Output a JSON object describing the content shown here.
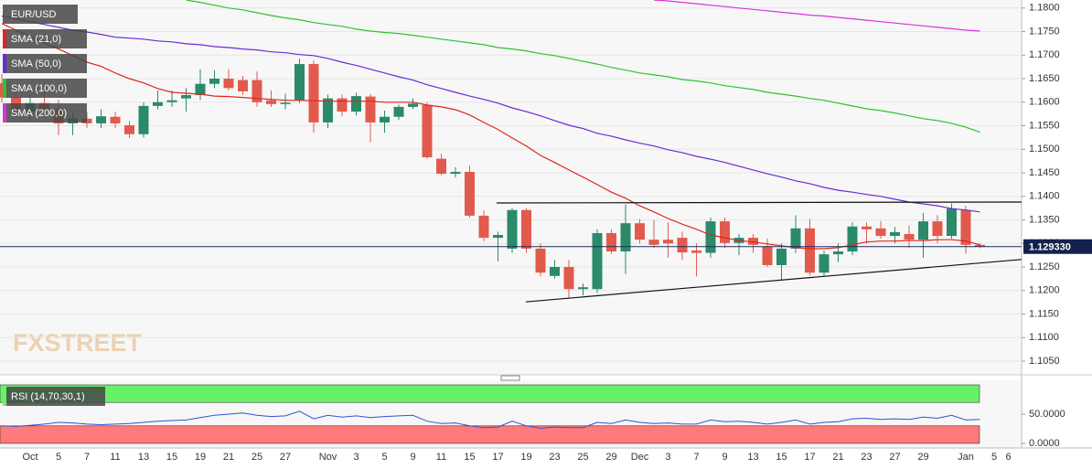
{
  "chart_data": {
    "type": "candlestick",
    "title": "EUR/USD",
    "watermark": "FXSTREET",
    "categories": [
      null,
      null,
      "Oct",
      null,
      "5",
      null,
      "7",
      null,
      "11",
      null,
      "13",
      null,
      "15",
      null,
      "19",
      null,
      "21",
      null,
      "25",
      null,
      "27",
      null,
      null,
      "Nov",
      null,
      "3",
      null,
      "5",
      null,
      "9",
      null,
      "11",
      null,
      "15",
      null,
      "17",
      null,
      "19",
      null,
      "23",
      null,
      "25",
      null,
      "29",
      null,
      "Dec",
      null,
      "3",
      null,
      "7",
      null,
      "9",
      null,
      "13",
      null,
      "15",
      null,
      "17",
      null,
      "21",
      null,
      "23",
      null,
      "27",
      null,
      "29",
      null,
      null,
      "Jan",
      null,
      "5",
      "6"
    ],
    "open": [
      1.164,
      1.161,
      1.158,
      1.1598,
      1.1585,
      1.1555,
      1.1565,
      1.1555,
      1.1569,
      1.1551,
      1.1532,
      1.1592,
      1.16,
      1.1608,
      1.1615,
      1.1639,
      1.165,
      1.1647,
      1.1647,
      1.1604,
      1.1596,
      1.1604,
      1.1681,
      1.1557,
      1.1608,
      1.158,
      1.1612,
      1.1557,
      1.1569,
      1.159,
      1.1594,
      1.148,
      1.1448,
      1.1452,
      1.1359,
      1.1312,
      1.1289,
      1.1371,
      1.1289,
      1.1231,
      1.125,
      1.1203,
      1.1203,
      1.1322,
      1.1283,
      1.1343,
      1.1308,
      1.1308,
      1.1312,
      1.1285,
      1.128,
      1.1347,
      1.1301,
      1.1312,
      1.1293,
      1.1254,
      1.1289,
      1.1332,
      1.1238,
      1.1277,
      1.1283,
      1.1336,
      1.1332,
      1.1316,
      1.132,
      1.1308,
      1.1347,
      1.1316,
      1.1371,
      1.1297,
      null,
      null
    ],
    "high": [
      1.166,
      1.164,
      1.1615,
      1.1625,
      1.1605,
      1.158,
      1.158,
      1.1585,
      1.158,
      1.156,
      1.16,
      1.1625,
      1.1625,
      1.163,
      1.167,
      1.1668,
      1.167,
      1.1656,
      1.1665,
      1.1625,
      1.1618,
      1.1692,
      1.1688,
      1.1616,
      1.1616,
      1.162,
      1.1617,
      1.1582,
      1.1595,
      1.1608,
      1.16,
      1.149,
      1.1462,
      1.1465,
      1.137,
      1.1325,
      1.1375,
      1.1375,
      1.13,
      1.1265,
      1.1265,
      1.1215,
      1.133,
      1.133,
      1.1383,
      1.1352,
      1.135,
      1.1345,
      1.1325,
      1.13,
      1.1355,
      1.1355,
      1.132,
      1.132,
      1.131,
      1.13,
      1.136,
      1.1352,
      1.1285,
      1.13,
      1.1345,
      1.1345,
      1.1348,
      1.1335,
      1.1338,
      1.1365,
      1.136,
      1.1385,
      1.138,
      1.13,
      null,
      null
    ],
    "low": [
      1.16,
      1.1565,
      1.1562,
      1.157,
      1.153,
      1.153,
      1.1545,
      1.1545,
      1.1545,
      1.1524,
      1.1525,
      1.1585,
      1.159,
      1.158,
      1.1605,
      1.163,
      1.1625,
      1.1615,
      1.159,
      1.159,
      1.1585,
      1.1598,
      1.1535,
      1.1545,
      1.157,
      1.1572,
      1.1515,
      1.1535,
      1.1562,
      1.1585,
      1.148,
      1.1445,
      1.144,
      1.1355,
      1.1305,
      1.1262,
      1.128,
      1.128,
      1.123,
      1.1225,
      1.1185,
      1.119,
      1.1195,
      1.1278,
      1.1235,
      1.13,
      1.129,
      1.127,
      1.1265,
      1.123,
      1.127,
      1.129,
      1.1275,
      1.128,
      1.125,
      1.1222,
      1.128,
      1.1232,
      1.123,
      1.126,
      1.1275,
      1.13,
      1.131,
      1.13,
      1.129,
      1.127,
      1.13,
      1.131,
      1.1278,
      1.129,
      null,
      null
    ],
    "close": [
      1.161,
      1.158,
      1.1598,
      1.1585,
      1.1555,
      1.1565,
      1.1555,
      1.157,
      1.1555,
      1.1532,
      1.1592,
      1.16,
      1.1604,
      1.1615,
      1.1639,
      1.165,
      1.163,
      1.1623,
      1.16,
      1.1596,
      1.1599,
      1.1681,
      1.1557,
      1.1608,
      1.158,
      1.1613,
      1.1557,
      1.1569,
      1.159,
      1.1597,
      1.1483,
      1.1448,
      1.1452,
      1.1359,
      1.1312,
      1.1318,
      1.1371,
      1.1289,
      1.1238,
      1.125,
      1.1203,
      1.1207,
      1.1322,
      1.1283,
      1.1343,
      1.1308,
      1.1297,
      1.13,
      1.1281,
      1.128,
      1.1347,
      1.1301,
      1.1312,
      1.1297,
      1.1254,
      1.1289,
      1.1332,
      1.1238,
      1.1277,
      1.1283,
      1.1336,
      1.133,
      1.1316,
      1.1324,
      1.1308,
      1.1347,
      1.1316,
      1.1374,
      1.1297,
      1.1293,
      null,
      null
    ],
    "up_color": "#2b8a6a",
    "down_color": "#e25a4c",
    "series": [
      {
        "name": "SMA (21,0)",
        "color": "#e3241b",
        "values": [
          1.1767,
          1.1753,
          1.174,
          1.1726,
          1.1713,
          1.1699,
          1.1685,
          1.1676,
          1.1662,
          1.165,
          1.1641,
          1.1629,
          1.1621,
          1.1619,
          1.1617,
          1.1613,
          1.1612,
          1.161,
          1.1608,
          1.1606,
          1.1604,
          1.1604,
          1.1603,
          1.1602,
          1.1602,
          1.1602,
          1.1602,
          1.16,
          1.16,
          1.16,
          1.1594,
          1.159,
          1.1584,
          1.1573,
          1.1557,
          1.1542,
          1.1524,
          1.1507,
          1.1487,
          1.1472,
          1.1456,
          1.1441,
          1.1425,
          1.1409,
          1.1396,
          1.138,
          1.1367,
          1.1353,
          1.1341,
          1.133,
          1.1318,
          1.1312,
          1.1306,
          1.1303,
          1.1299,
          1.1295,
          1.1291,
          1.1289,
          1.1289,
          1.1291,
          1.1297,
          1.1303,
          1.1305,
          1.1305,
          1.1306,
          1.1306,
          1.1308,
          1.1308,
          1.1305,
          1.1297,
          null,
          null
        ]
      },
      {
        "name": "SMA (50,0)",
        "color": "#6a2bd6",
        "values": [
          1.1783,
          1.1777,
          1.1771,
          1.1765,
          1.1759,
          1.1753,
          1.1749,
          1.1744,
          1.1738,
          1.1736,
          1.1734,
          1.173,
          1.1728,
          1.1724,
          1.1722,
          1.1718,
          1.1716,
          1.1713,
          1.1711,
          1.1707,
          1.1705,
          1.1701,
          1.1699,
          1.1693,
          1.1685,
          1.1678,
          1.167,
          1.1662,
          1.1654,
          1.1647,
          1.1637,
          1.1629,
          1.1621,
          1.1613,
          1.1606,
          1.1598,
          1.1588,
          1.158,
          1.1571,
          1.1561,
          1.1551,
          1.1544,
          1.1534,
          1.1528,
          1.152,
          1.1513,
          1.1507,
          1.1499,
          1.1493,
          1.1485,
          1.1479,
          1.1472,
          1.1464,
          1.1456,
          1.1448,
          1.1441,
          1.1433,
          1.1427,
          1.1419,
          1.1413,
          1.1409,
          1.1404,
          1.14,
          1.1394,
          1.1388,
          1.1384,
          1.138,
          1.1374,
          1.1371,
          1.1367,
          null,
          null
        ]
      },
      {
        "name": "SMA (100,0)",
        "color": "#2ec22e",
        "values": [
          null,
          null,
          null,
          null,
          null,
          null,
          null,
          null,
          null,
          null,
          null,
          null,
          null,
          1.1817,
          1.1812,
          1.1806,
          1.18,
          1.1796,
          1.179,
          1.1784,
          1.1779,
          1.1775,
          1.1769,
          1.1765,
          1.1761,
          1.1755,
          1.1751,
          1.1748,
          1.1746,
          1.1742,
          1.1738,
          1.1734,
          1.173,
          1.1726,
          1.1722,
          1.1716,
          1.1713,
          1.1709,
          1.1703,
          1.1699,
          1.1693,
          1.1687,
          1.1681,
          1.1674,
          1.1668,
          1.1662,
          1.1658,
          1.1654,
          1.1648,
          1.1645,
          1.1641,
          1.1635,
          1.1631,
          1.1627,
          1.1621,
          1.1617,
          1.1613,
          1.1608,
          1.1604,
          1.1598,
          1.1592,
          1.1586,
          1.1582,
          1.1577,
          1.1571,
          1.1565,
          1.1561,
          1.1555,
          1.1547,
          1.1536,
          null,
          null
        ]
      },
      {
        "name": "SMA (200,0)",
        "color": "#d933d9",
        "values": [
          null,
          null,
          null,
          null,
          null,
          null,
          null,
          null,
          null,
          null,
          null,
          null,
          null,
          null,
          null,
          null,
          null,
          null,
          null,
          null,
          null,
          null,
          null,
          null,
          null,
          null,
          null,
          null,
          null,
          null,
          null,
          null,
          null,
          null,
          null,
          null,
          null,
          null,
          null,
          null,
          null,
          null,
          null,
          null,
          null,
          null,
          1.1817,
          1.1815,
          1.1812,
          1.1809,
          1.1806,
          1.1803,
          1.18,
          1.1797,
          1.1794,
          1.1791,
          1.1788,
          1.1785,
          1.1783,
          1.178,
          1.1777,
          1.1774,
          1.1771,
          1.1768,
          1.1765,
          1.1762,
          1.1759,
          1.1756,
          1.1753,
          1.1751,
          null,
          null
        ]
      }
    ],
    "trendlines": [
      {
        "from": 1.1386,
        "to": 1.1388
      },
      {
        "from": 1.1176,
        "to": 1.1266
      }
    ],
    "last_price": {
      "value": 1.12933,
      "label": "1.129330"
    },
    "ylim": [
      1.1021,
      1.1817
    ],
    "yticks": [
      {
        "value": 1.18,
        "label": "1.1800"
      },
      {
        "value": 1.175,
        "label": "1.1750"
      },
      {
        "value": 1.17,
        "label": "1.1700"
      },
      {
        "value": 1.165,
        "label": "1.1650"
      },
      {
        "value": 1.16,
        "label": "1.1600"
      },
      {
        "value": 1.155,
        "label": "1.1550"
      },
      {
        "value": 1.15,
        "label": "1.1500"
      },
      {
        "value": 1.145,
        "label": "1.1450"
      },
      {
        "value": 1.14,
        "label": "1.1400"
      },
      {
        "value": 1.135,
        "label": "1.1350"
      },
      {
        "value": 1.13,
        "label": "1.1300"
      },
      {
        "value": 1.125,
        "label": "1.1250"
      },
      {
        "value": 1.12,
        "label": "1.1200"
      },
      {
        "value": 1.115,
        "label": "1.1150"
      },
      {
        "value": 1.11,
        "label": "1.1100"
      },
      {
        "value": 1.105,
        "label": "1.1050"
      }
    ],
    "grid": true,
    "rsi": {
      "name": "RSI (14,70,30,1)",
      "color": "#3452d1",
      "values": [
        30,
        29,
        31,
        33,
        36,
        35,
        33,
        32,
        33,
        34,
        36,
        38,
        39,
        40,
        44,
        48,
        50,
        52,
        48,
        46,
        47,
        55,
        42,
        48,
        45,
        47,
        44,
        46,
        47,
        48,
        38,
        34,
        35,
        30,
        27,
        28,
        38,
        30,
        26,
        28,
        27,
        27,
        36,
        34,
        40,
        36,
        34,
        35,
        33,
        33,
        40,
        37,
        38,
        36,
        33,
        36,
        40,
        33,
        36,
        37,
        42,
        43,
        41,
        42,
        41,
        45,
        43,
        48,
        40,
        41,
        null,
        null
      ],
      "bands": [
        {
          "from": 70,
          "to": 100,
          "color": "#66f266"
        },
        {
          "from": 0,
          "to": 30,
          "color": "#ff7a7a"
        }
      ],
      "ylim": [
        -7.8,
        107.8
      ],
      "yticks": [
        {
          "value": 50,
          "label": "50.0000"
        },
        {
          "value": 0,
          "label": "0.0000"
        }
      ]
    }
  }
}
